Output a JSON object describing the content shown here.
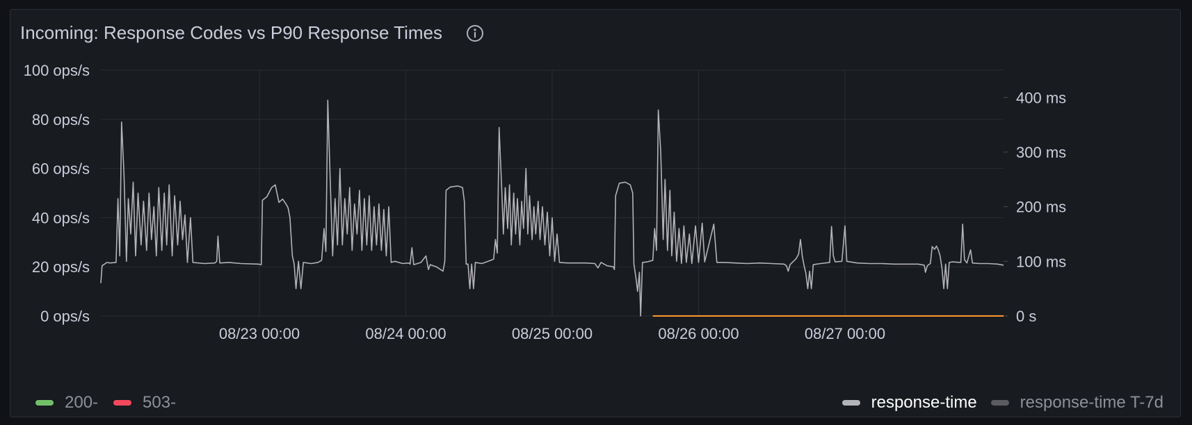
{
  "panel": {
    "title": "Incoming: Response Codes vs P90 Response Times",
    "info_icon": "info-circle-icon"
  },
  "colors": {
    "background": "#111217",
    "panel": "#181b1f",
    "grid": "#2a2d33",
    "text": "#ccccdc",
    "series_200": "#73bf69",
    "series_503": "#f2495c",
    "response_time": "#b3b3b8",
    "response_time_t7d": "#5a5c62",
    "orange_line": "#ff9830"
  },
  "legend": {
    "left": [
      {
        "label": "200-",
        "color": "#73bf69"
      },
      {
        "label": "503-",
        "color": "#f2495c"
      }
    ],
    "right": [
      {
        "label": "response-time",
        "color": "#b3b3b8"
      },
      {
        "label": "response-time T-7d",
        "color": "#5a5c62"
      }
    ]
  },
  "chart_data": {
    "type": "line",
    "title": "Incoming: Response Codes vs P90 Response Times",
    "x_range_hours": [
      -26,
      122
    ],
    "left_axis": {
      "unit": "ops/s",
      "range": [
        0,
        100
      ],
      "ticks": [
        0,
        20,
        40,
        60,
        80,
        100
      ],
      "tick_labels": [
        "0 ops/s",
        "20 ops/s",
        "40 ops/s",
        "60 ops/s",
        "80 ops/s",
        "100 ops/s"
      ]
    },
    "right_axis": {
      "unit": "ms",
      "range": [
        0,
        450
      ],
      "ticks": [
        0,
        100,
        200,
        300,
        400
      ],
      "tick_labels": [
        "0 s",
        "100 ms",
        "200 ms",
        "300 ms",
        "400 ms"
      ]
    },
    "x_axis": {
      "ticks_hours": [
        0,
        24,
        48,
        72,
        96
      ],
      "tick_labels": [
        "08/23 00:00",
        "08/24 00:00",
        "08/25 00:00",
        "08/26 00:00",
        "08/27 00:00"
      ]
    },
    "grid": true,
    "legend_position": "bottom",
    "series": [
      {
        "name": "response-time",
        "axis": "right",
        "color": "#b3b3b8",
        "points": [
          [
            -26.0,
            60
          ],
          [
            -25.8,
            92
          ],
          [
            -25.4,
            95
          ],
          [
            -25.0,
            98
          ],
          [
            -24.5,
            97
          ],
          [
            -23.5,
            98
          ],
          [
            -23.2,
            215
          ],
          [
            -22.9,
            110
          ],
          [
            -22.6,
            355
          ],
          [
            -22.2,
            260
          ],
          [
            -21.8,
            100
          ],
          [
            -21.5,
            215
          ],
          [
            -21.1,
            150
          ],
          [
            -20.7,
            245
          ],
          [
            -20.3,
            110
          ],
          [
            -19.9,
            225
          ],
          [
            -19.4,
            130
          ],
          [
            -19.0,
            210
          ],
          [
            -18.5,
            120
          ],
          [
            -18.1,
            225
          ],
          [
            -17.7,
            140
          ],
          [
            -17.3,
            200
          ],
          [
            -16.9,
            110
          ],
          [
            -16.5,
            235
          ],
          [
            -16.0,
            120
          ],
          [
            -15.6,
            225
          ],
          [
            -15.2,
            130
          ],
          [
            -14.8,
            240
          ],
          [
            -14.3,
            110
          ],
          [
            -13.9,
            220
          ],
          [
            -13.4,
            130
          ],
          [
            -13.0,
            210
          ],
          [
            -12.6,
            140
          ],
          [
            -12.2,
            185
          ],
          [
            -11.8,
            98
          ],
          [
            -11.3,
            180
          ],
          [
            -10.9,
            98
          ],
          [
            -9.0,
            96
          ],
          [
            -7.3,
            97
          ],
          [
            -7.0,
            100
          ],
          [
            -6.8,
            146
          ],
          [
            -6.5,
            97
          ],
          [
            -5.0,
            98
          ],
          [
            -3.0,
            96
          ],
          [
            -0.2,
            95
          ],
          [
            0.3,
            94
          ],
          [
            0.5,
            212
          ],
          [
            1.2,
            218
          ],
          [
            2.0,
            235
          ],
          [
            2.6,
            240
          ],
          [
            3.2,
            208
          ],
          [
            3.8,
            214
          ],
          [
            4.3,
            206
          ],
          [
            4.7,
            198
          ],
          [
            5.0,
            180
          ],
          [
            5.4,
            110
          ],
          [
            5.7,
            95
          ],
          [
            6.0,
            50
          ],
          [
            6.4,
            100
          ],
          [
            6.8,
            50
          ],
          [
            7.2,
            98
          ],
          [
            8.5,
            96
          ],
          [
            9.6,
            98
          ],
          [
            10.2,
            102
          ],
          [
            10.6,
            160
          ],
          [
            10.9,
            118
          ],
          [
            11.2,
            395
          ],
          [
            11.6,
            250
          ],
          [
            12.0,
            110
          ],
          [
            12.4,
            215
          ],
          [
            12.8,
            130
          ],
          [
            13.2,
            270
          ],
          [
            13.6,
            130
          ],
          [
            14.0,
            215
          ],
          [
            14.4,
            150
          ],
          [
            14.8,
            235
          ],
          [
            15.2,
            120
          ],
          [
            15.6,
            205
          ],
          [
            16.0,
            150
          ],
          [
            16.4,
            230
          ],
          [
            16.8,
            120
          ],
          [
            17.2,
            215
          ],
          [
            17.6,
            130
          ],
          [
            18.0,
            220
          ],
          [
            18.4,
            120
          ],
          [
            18.8,
            200
          ],
          [
            19.2,
            130
          ],
          [
            19.6,
            205
          ],
          [
            20.0,
            120
          ],
          [
            20.4,
            195
          ],
          [
            20.8,
            110
          ],
          [
            21.2,
            200
          ],
          [
            21.6,
            98
          ],
          [
            22.2,
            100
          ],
          [
            23.5,
            96
          ],
          [
            24.5,
            97
          ],
          [
            24.7,
            95
          ],
          [
            25.0,
            125
          ],
          [
            25.3,
            94
          ],
          [
            26.5,
            98
          ],
          [
            27.3,
            110
          ],
          [
            27.7,
            85
          ],
          [
            28.0,
            94
          ],
          [
            29.0,
            90
          ],
          [
            30.1,
            82
          ],
          [
            30.4,
            100
          ],
          [
            30.6,
            230
          ],
          [
            31.3,
            236
          ],
          [
            32.5,
            238
          ],
          [
            33.3,
            235
          ],
          [
            33.6,
            210
          ],
          [
            33.9,
            95
          ],
          [
            34.2,
            95
          ],
          [
            34.5,
            50
          ],
          [
            34.8,
            95
          ],
          [
            35.1,
            50
          ],
          [
            35.4,
            98
          ],
          [
            36.5,
            96
          ],
          [
            37.5,
            100
          ],
          [
            38.4,
            104
          ],
          [
            38.7,
            140
          ],
          [
            39.0,
            115
          ],
          [
            39.3,
            345
          ],
          [
            39.7,
            240
          ],
          [
            40.0,
            150
          ],
          [
            40.3,
            235
          ],
          [
            40.7,
            160
          ],
          [
            41.0,
            240
          ],
          [
            41.3,
            130
          ],
          [
            41.7,
            225
          ],
          [
            42.0,
            150
          ],
          [
            42.3,
            215
          ],
          [
            42.7,
            130
          ],
          [
            43.0,
            210
          ],
          [
            43.3,
            160
          ],
          [
            43.7,
            270
          ],
          [
            44.0,
            150
          ],
          [
            44.3,
            220
          ],
          [
            44.7,
            140
          ],
          [
            45.0,
            200
          ],
          [
            45.3,
            150
          ],
          [
            45.7,
            210
          ],
          [
            46.0,
            140
          ],
          [
            46.4,
            200
          ],
          [
            46.8,
            130
          ],
          [
            47.2,
            190
          ],
          [
            47.6,
            110
          ],
          [
            48.0,
            180
          ],
          [
            48.4,
            100
          ],
          [
            48.8,
            150
          ],
          [
            49.2,
            98
          ],
          [
            50.5,
            97
          ],
          [
            52.0,
            97
          ],
          [
            53.5,
            97
          ],
          [
            55.0,
            96
          ],
          [
            55.5,
            88
          ],
          [
            56.0,
            98
          ],
          [
            57.0,
            92
          ],
          [
            58.0,
            90
          ],
          [
            58.2,
            85
          ],
          [
            58.4,
            220
          ],
          [
            59.0,
            243
          ],
          [
            60.0,
            245
          ],
          [
            60.8,
            240
          ],
          [
            61.2,
            225
          ],
          [
            61.4,
            95
          ],
          [
            61.7,
            72
          ],
          [
            62.0,
            45
          ],
          [
            62.3,
            80
          ],
          [
            62.5,
            0
          ],
          [
            62.8,
            98
          ],
          [
            63.6,
            99
          ],
          [
            64.5,
            102
          ],
          [
            64.8,
            160
          ],
          [
            65.1,
            120
          ],
          [
            65.4,
            377
          ],
          [
            65.8,
            300
          ],
          [
            66.2,
            140
          ],
          [
            66.5,
            250
          ],
          [
            66.9,
            120
          ],
          [
            67.3,
            230
          ],
          [
            67.6,
            110
          ],
          [
            68.0,
            190
          ],
          [
            68.4,
            100
          ],
          [
            68.8,
            160
          ],
          [
            69.2,
            96
          ],
          [
            69.6,
            165
          ],
          [
            70.0,
            98
          ],
          [
            70.5,
            150
          ],
          [
            70.9,
            96
          ],
          [
            71.5,
            165
          ],
          [
            72.0,
            98
          ],
          [
            72.6,
            170
          ],
          [
            73.0,
            99
          ],
          [
            74.5,
            168
          ],
          [
            75.0,
            98
          ],
          [
            76.3,
            98
          ],
          [
            78.0,
            97
          ],
          [
            80.0,
            96
          ],
          [
            82.0,
            97
          ],
          [
            84.0,
            96
          ],
          [
            86.0,
            95
          ],
          [
            86.4,
            92
          ],
          [
            86.7,
            82
          ],
          [
            87.0,
            94
          ],
          [
            88.0,
            105
          ],
          [
            88.4,
            113
          ],
          [
            88.7,
            140
          ],
          [
            89.0,
            110
          ],
          [
            89.3,
            92
          ],
          [
            89.6,
            78
          ],
          [
            89.9,
            50
          ],
          [
            90.2,
            82
          ],
          [
            90.5,
            50
          ],
          [
            90.8,
            94
          ],
          [
            92.0,
            96
          ],
          [
            93.5,
            98
          ],
          [
            93.8,
            164
          ],
          [
            94.1,
            110
          ],
          [
            94.4,
            99
          ],
          [
            95.5,
            100
          ],
          [
            96.0,
            165
          ],
          [
            96.3,
            100
          ],
          [
            98.0,
            97
          ],
          [
            100.0,
            96
          ],
          [
            102.0,
            96
          ],
          [
            104.0,
            95
          ],
          [
            106.0,
            95
          ],
          [
            108.0,
            95
          ],
          [
            109.0,
            93
          ],
          [
            109.2,
            80
          ],
          [
            109.5,
            92
          ],
          [
            110.0,
            96
          ],
          [
            110.3,
            127
          ],
          [
            110.7,
            122
          ],
          [
            111.0,
            128
          ],
          [
            111.3,
            121
          ],
          [
            111.6,
            110
          ],
          [
            111.9,
            88
          ],
          [
            112.2,
            50
          ],
          [
            112.5,
            95
          ],
          [
            112.8,
            50
          ],
          [
            113.1,
            98
          ],
          [
            113.6,
            99
          ],
          [
            115.0,
            98
          ],
          [
            115.3,
            168
          ],
          [
            115.6,
            103
          ],
          [
            116.0,
            97
          ],
          [
            116.6,
            121
          ],
          [
            116.9,
            97
          ],
          [
            118.0,
            96
          ],
          [
            119.5,
            96
          ],
          [
            121.0,
            95
          ],
          [
            122.0,
            93
          ]
        ]
      },
      {
        "name": "",
        "axis": "right",
        "color": "#ff9830",
        "points": [
          [
            64.5,
            0
          ],
          [
            122,
            0
          ]
        ]
      }
    ]
  }
}
